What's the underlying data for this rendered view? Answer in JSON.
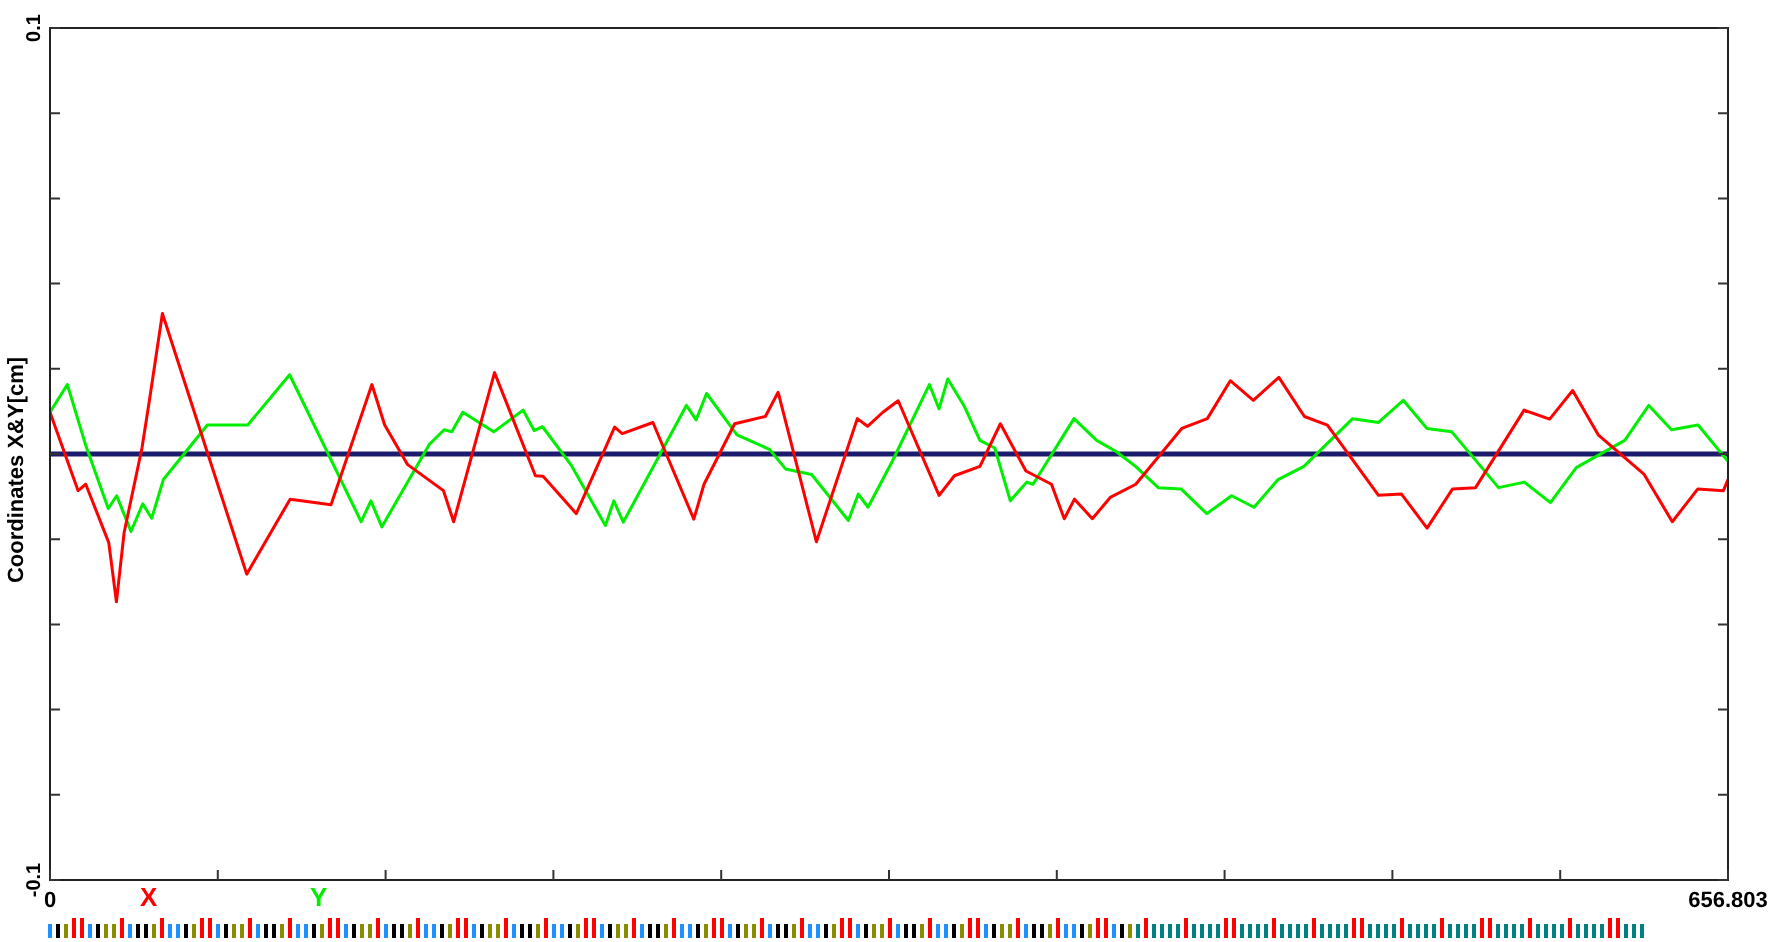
{
  "chart_data": {
    "type": "line",
    "ylabel": "Coordinates X&Y[cm]",
    "legend": "bottom left",
    "marker": "none",
    "grid": false,
    "xlim": [
      0,
      656.803
    ],
    "ylim": [
      -0.1,
      0.1
    ],
    "xticks": [
      0,
      {
        "value": 65.68,
        "label": null
      },
      {
        "value": 131.36,
        "label": null
      },
      {
        "value": 197.04,
        "label": null
      },
      {
        "value": 262.72,
        "label": null
      },
      {
        "value": 328.4,
        "label": null
      },
      {
        "value": 394.08,
        "label": null
      },
      {
        "value": 459.76,
        "label": null
      },
      {
        "value": 525.44,
        "label": null
      },
      {
        "value": 591.12,
        "label": null
      },
      656.803
    ],
    "yticks": [
      -0.1,
      {
        "value": -0.08,
        "label": null
      },
      {
        "value": -0.06,
        "label": null
      },
      {
        "value": -0.04,
        "label": null
      },
      {
        "value": -0.02,
        "label": null
      },
      {
        "value": 0,
        "label": null
      },
      {
        "value": 0.02,
        "label": null
      },
      {
        "value": 0.04,
        "label": null
      },
      {
        "value": 0.06,
        "label": null
      },
      {
        "value": 0.08,
        "label": null
      },
      0.1
    ],
    "ref_lines": [
      {
        "axis": "y",
        "value": 0,
        "color": "#1c1c6e"
      }
    ],
    "series": [
      {
        "name": "X",
        "color": "#ff0000",
        "x": [
          0,
          11,
          14,
          23,
          26,
          29,
          36,
          39,
          44,
          77,
          94,
          110,
          126,
          131,
          140,
          154,
          158,
          174,
          190,
          193,
          206,
          221,
          224,
          236,
          252,
          256,
          268,
          280,
          285,
          300,
          316,
          320,
          326,
          332,
          348,
          354,
          364,
          372,
          382,
          392,
          397,
          401,
          408,
          415,
          425,
          443,
          453,
          462,
          471,
          481,
          491,
          500,
          520,
          529,
          539,
          549,
          558,
          577,
          587,
          596,
          606,
          624,
          635,
          645,
          655,
          656.8
        ],
        "values": [
          0.0098,
          -0.0086,
          -0.0071,
          -0.0208,
          -0.0347,
          -0.0185,
          0.0014,
          0.0129,
          0.033,
          -0.0282,
          -0.0106,
          -0.0119,
          0.0163,
          0.0068,
          -0.0025,
          -0.0086,
          -0.0159,
          0.0191,
          -0.0051,
          -0.0052,
          -0.014,
          0.0063,
          0.0048,
          0.0074,
          -0.0153,
          -0.0071,
          0.0071,
          0.0088,
          0.0145,
          -0.0206,
          0.0083,
          0.0065,
          0.0098,
          0.0125,
          -0.0097,
          -0.0051,
          -0.0029,
          0.0071,
          -0.004,
          -0.0071,
          -0.0152,
          -0.0106,
          -0.0152,
          -0.0102,
          -0.0071,
          0.006,
          0.0083,
          0.0172,
          0.0126,
          0.018,
          0.0088,
          0.0068,
          -0.0097,
          -0.0094,
          -0.0174,
          -0.0082,
          -0.0079,
          0.0103,
          0.0082,
          0.0149,
          0.0045,
          -0.0048,
          -0.0159,
          -0.0082,
          -0.0086,
          -0.006
        ]
      },
      {
        "name": "Y",
        "color": "#00ee00",
        "x": [
          0,
          6.8,
          13.9,
          22.8,
          26.1,
          31.7,
          36.3,
          39.8,
          44.4,
          61.6,
          77.4,
          93.8,
          121.8,
          125.6,
          129.9,
          148.4,
          154.3,
          157.3,
          161.6,
          173.7,
          185.2,
          189.5,
          192.8,
          204.2,
          217.4,
          220.7,
          224.4,
          249.1,
          252.9,
          257,
          268.9,
          281.6,
          287.9,
          298.1,
          312.5,
          316.4,
          320.2,
          329.7,
          344.2,
          348,
          351.4,
          357.7,
          364,
          369.8,
          375.9,
          382.3,
          384.8,
          400.8,
          409.7,
          417.3,
          424.9,
          433.8,
          442.7,
          452.8,
          462.5,
          471.3,
          480.7,
          490.8,
          509.9,
          520,
          529.7,
          539,
          548.7,
          567,
          577.1,
          587.3,
          597.4,
          616.4,
          625.8,
          634.7,
          645.1,
          656.8
        ],
        "values": [
          0.0098,
          0.0163,
          0.0022,
          -0.0128,
          -0.0098,
          -0.0182,
          -0.0117,
          -0.0151,
          -0.006,
          0.0068,
          0.0068,
          0.0186,
          -0.0159,
          -0.011,
          -0.0171,
          0.0022,
          0.0057,
          0.0052,
          0.0098,
          0.0052,
          0.0103,
          0.0055,
          0.0064,
          -0.0028,
          -0.0168,
          -0.011,
          -0.016,
          0.0114,
          0.008,
          0.0142,
          0.0045,
          0.0011,
          -0.0035,
          -0.0048,
          -0.0156,
          -0.0094,
          -0.0125,
          -0.0017,
          0.0163,
          0.0106,
          0.0176,
          0.0114,
          0.0032,
          0.0014,
          -0.011,
          -0.0066,
          -0.0071,
          0.0083,
          0.0032,
          0.0006,
          -0.0029,
          -0.0079,
          -0.0082,
          -0.014,
          -0.0098,
          -0.0125,
          -0.006,
          -0.0029,
          0.0083,
          0.0074,
          0.0126,
          0.006,
          0.0052,
          -0.0079,
          -0.0066,
          -0.0114,
          -0.0032,
          0.0032,
          0.0114,
          0.0057,
          0.0068,
          -0.0017
        ]
      }
    ]
  }
}
